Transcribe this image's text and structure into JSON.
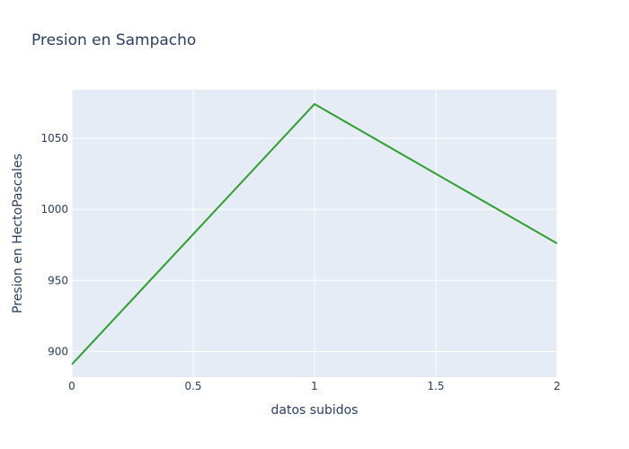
{
  "chart_data": {
    "type": "line",
    "title": "Presion en Sampacho",
    "xlabel": "datos subidos",
    "ylabel": "Presion en HectoPascales",
    "x": [
      0,
      1,
      2
    ],
    "series": [
      {
        "values": [
          891,
          1074,
          976
        ],
        "color": "#2ca02c"
      }
    ],
    "xlim": [
      0,
      2
    ],
    "ylim": [
      882,
      1084
    ],
    "xticks": [
      0,
      0.5,
      1,
      1.5,
      2
    ],
    "xtick_labels": [
      "0",
      "0.5",
      "1",
      "1.5",
      "2"
    ],
    "yticks": [
      900,
      950,
      1000,
      1050
    ],
    "ytick_labels": [
      "900",
      "950",
      "1000",
      "1050"
    ],
    "grid": true,
    "legend": "none",
    "background_color": "#e5ecf6"
  }
}
